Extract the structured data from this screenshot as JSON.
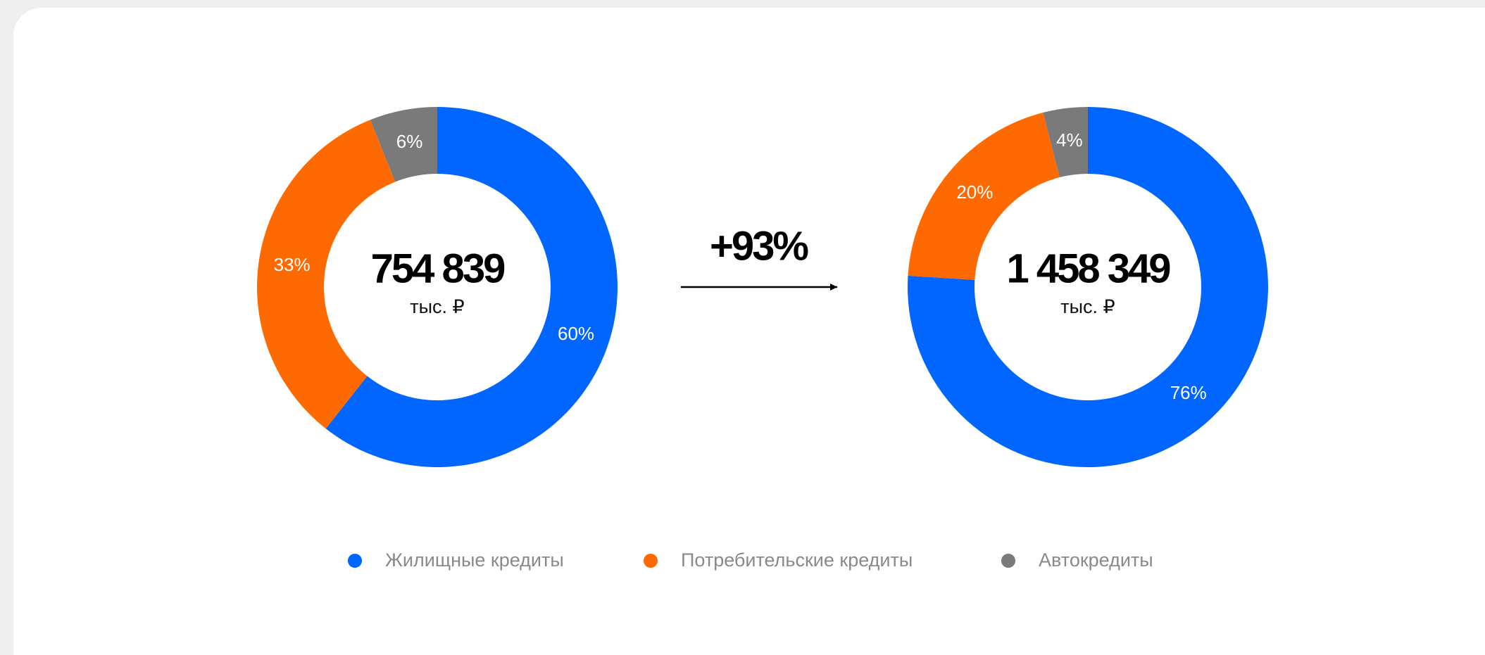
{
  "chart_data": [
    {
      "type": "pie",
      "donut": true,
      "total": "754 839",
      "unit": "тыс. ₽",
      "categories": [
        "Жилищные кредиты",
        "Потребительские кредиты",
        "Автокредиты"
      ],
      "values": [
        60,
        33,
        6
      ],
      "value_labels": [
        "60%",
        "33%",
        "6%"
      ],
      "colors": [
        "#0066ff",
        "#ff6a00",
        "#7a7a7a"
      ]
    },
    {
      "type": "pie",
      "donut": true,
      "total": "1 458 349",
      "unit": "тыс. ₽",
      "categories": [
        "Жилищные кредиты",
        "Потребительские кредиты",
        "Автокредиты"
      ],
      "values": [
        76,
        20,
        4
      ],
      "value_labels": [
        "76%",
        "20%",
        "4%"
      ],
      "colors": [
        "#0066ff",
        "#ff6a00",
        "#7a7a7a"
      ]
    }
  ],
  "change": "+93%"
}
